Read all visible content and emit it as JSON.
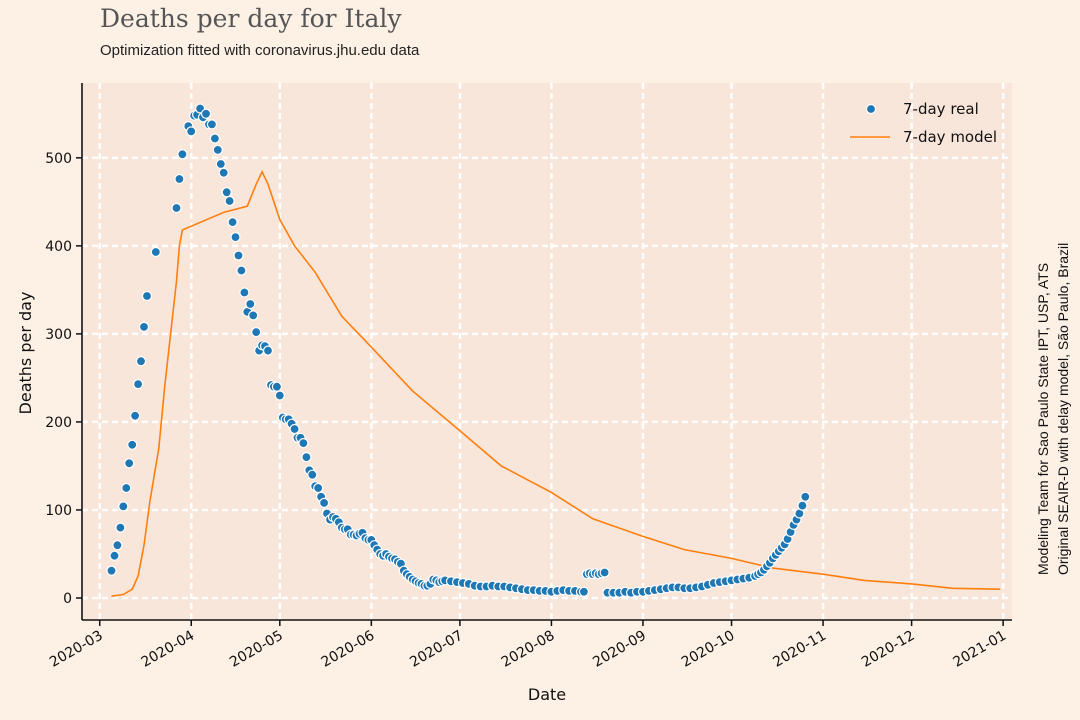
{
  "header": {
    "title": "Deaths per day for Italy",
    "subtitle": "Optimization fitted with coronavirus.jhu.edu data"
  },
  "side_note": {
    "line1": "Modeling Team for Sao Paulo State IPT, USP, ATS",
    "line2": "Original SEAIR-D with delay model, São Paulo, Brazil"
  },
  "colors": {
    "background": "#fdf1e6",
    "plot_background": "#f9e6da",
    "grid": "#ffffff",
    "real": "#1f77b4",
    "model": "#ff7f0e"
  },
  "chart_data": {
    "type": "line",
    "xlabel": "Date",
    "ylabel": "Deaths per day",
    "xlim": [
      "2020-02-24",
      "2021-01-04"
    ],
    "ylim": [
      -25,
      585
    ],
    "grid": true,
    "legend_position": "top-right",
    "x_ticks": [
      "2020-03",
      "2020-04",
      "2020-05",
      "2020-06",
      "2020-07",
      "2020-08",
      "2020-09",
      "2020-10",
      "2020-11",
      "2020-12",
      "2021-01"
    ],
    "y_ticks": [
      0,
      100,
      200,
      300,
      400,
      500
    ],
    "series": [
      {
        "name": "7-day real",
        "style": "scatter",
        "points": [
          [
            "2020-03-05",
            31
          ],
          [
            "2020-03-06",
            48
          ],
          [
            "2020-03-07",
            60
          ],
          [
            "2020-03-08",
            80
          ],
          [
            "2020-03-09",
            104
          ],
          [
            "2020-03-10",
            125
          ],
          [
            "2020-03-11",
            153
          ],
          [
            "2020-03-12",
            174
          ],
          [
            "2020-03-13",
            207
          ],
          [
            "2020-03-14",
            243
          ],
          [
            "2020-03-15",
            269
          ],
          [
            "2020-03-16",
            308
          ],
          [
            "2020-03-17",
            343
          ],
          [
            "2020-03-20",
            393
          ],
          [
            "2020-03-27",
            443
          ],
          [
            "2020-03-28",
            476
          ],
          [
            "2020-03-29",
            504
          ],
          [
            "2020-03-31",
            536
          ],
          [
            "2020-04-01",
            530
          ],
          [
            "2020-04-02",
            548
          ],
          [
            "2020-04-03",
            549
          ],
          [
            "2020-04-04",
            556
          ],
          [
            "2020-04-05",
            546
          ],
          [
            "2020-04-06",
            550
          ],
          [
            "2020-04-07",
            538
          ],
          [
            "2020-04-08",
            538
          ],
          [
            "2020-04-09",
            522
          ],
          [
            "2020-04-10",
            509
          ],
          [
            "2020-04-11",
            493
          ],
          [
            "2020-04-12",
            483
          ],
          [
            "2020-04-13",
            461
          ],
          [
            "2020-04-14",
            451
          ],
          [
            "2020-04-15",
            427
          ],
          [
            "2020-04-16",
            410
          ],
          [
            "2020-04-17",
            389
          ],
          [
            "2020-04-18",
            372
          ],
          [
            "2020-04-19",
            347
          ],
          [
            "2020-04-20",
            325
          ],
          [
            "2020-04-21",
            334
          ],
          [
            "2020-04-22",
            321
          ],
          [
            "2020-04-23",
            302
          ],
          [
            "2020-04-24",
            281
          ],
          [
            "2020-04-25",
            287
          ],
          [
            "2020-04-26",
            286
          ],
          [
            "2020-04-27",
            281
          ],
          [
            "2020-04-28",
            242
          ],
          [
            "2020-04-29",
            240
          ],
          [
            "2020-04-30",
            240
          ],
          [
            "2020-05-01",
            230
          ],
          [
            "2020-05-02",
            205
          ],
          [
            "2020-05-03",
            203
          ],
          [
            "2020-05-04",
            203
          ],
          [
            "2020-05-05",
            198
          ],
          [
            "2020-05-06",
            192
          ],
          [
            "2020-05-07",
            182
          ],
          [
            "2020-05-08",
            182
          ],
          [
            "2020-05-09",
            176
          ],
          [
            "2020-05-10",
            160
          ],
          [
            "2020-05-11",
            145
          ],
          [
            "2020-05-12",
            140
          ],
          [
            "2020-05-13",
            127
          ],
          [
            "2020-05-14",
            125
          ],
          [
            "2020-05-15",
            115
          ],
          [
            "2020-05-16",
            108
          ],
          [
            "2020-05-17",
            96
          ],
          [
            "2020-05-18",
            89
          ],
          [
            "2020-05-19",
            92
          ],
          [
            "2020-05-20",
            90
          ],
          [
            "2020-05-21",
            86
          ],
          [
            "2020-05-22",
            80
          ],
          [
            "2020-05-23",
            78
          ],
          [
            "2020-05-24",
            78
          ],
          [
            "2020-05-25",
            72
          ],
          [
            "2020-05-26",
            72
          ],
          [
            "2020-05-27",
            71
          ],
          [
            "2020-05-28",
            73
          ],
          [
            "2020-05-29",
            74
          ],
          [
            "2020-05-30",
            68
          ],
          [
            "2020-05-31",
            66
          ],
          [
            "2020-06-01",
            66
          ],
          [
            "2020-06-02",
            60
          ],
          [
            "2020-06-03",
            55
          ],
          [
            "2020-06-04",
            50
          ],
          [
            "2020-06-05",
            48
          ],
          [
            "2020-06-06",
            50
          ],
          [
            "2020-06-07",
            47
          ],
          [
            "2020-06-08",
            45
          ],
          [
            "2020-06-09",
            44
          ],
          [
            "2020-06-10",
            41
          ],
          [
            "2020-06-11",
            39
          ],
          [
            "2020-06-12",
            31
          ],
          [
            "2020-06-13",
            27
          ],
          [
            "2020-06-14",
            24
          ],
          [
            "2020-06-15",
            21
          ],
          [
            "2020-06-16",
            19
          ],
          [
            "2020-06-17",
            17
          ],
          [
            "2020-06-18",
            16
          ],
          [
            "2020-06-19",
            14
          ],
          [
            "2020-06-20",
            14
          ],
          [
            "2020-06-21",
            16
          ],
          [
            "2020-06-22",
            21
          ],
          [
            "2020-06-23",
            20
          ],
          [
            "2020-06-24",
            18
          ],
          [
            "2020-06-25",
            19
          ],
          [
            "2020-06-26",
            20
          ],
          [
            "2020-06-28",
            19
          ],
          [
            "2020-06-30",
            18
          ],
          [
            "2020-07-02",
            17
          ],
          [
            "2020-07-04",
            16
          ],
          [
            "2020-07-06",
            14
          ],
          [
            "2020-07-08",
            13
          ],
          [
            "2020-07-10",
            13
          ],
          [
            "2020-07-12",
            14
          ],
          [
            "2020-07-14",
            13
          ],
          [
            "2020-07-16",
            13
          ],
          [
            "2020-07-18",
            12
          ],
          [
            "2020-07-20",
            11
          ],
          [
            "2020-07-22",
            10
          ],
          [
            "2020-07-24",
            9
          ],
          [
            "2020-07-26",
            9
          ],
          [
            "2020-07-28",
            8
          ],
          [
            "2020-07-30",
            8
          ],
          [
            "2020-08-01",
            7
          ],
          [
            "2020-08-03",
            8
          ],
          [
            "2020-08-05",
            9
          ],
          [
            "2020-08-07",
            8
          ],
          [
            "2020-08-09",
            8
          ],
          [
            "2020-08-11",
            7
          ],
          [
            "2020-08-12",
            7
          ],
          [
            "2020-08-13",
            27
          ],
          [
            "2020-08-14",
            28
          ],
          [
            "2020-08-15",
            27
          ],
          [
            "2020-08-16",
            28
          ],
          [
            "2020-08-17",
            27
          ],
          [
            "2020-08-18",
            28
          ],
          [
            "2020-08-19",
            29
          ],
          [
            "2020-08-20",
            6
          ],
          [
            "2020-08-22",
            6
          ],
          [
            "2020-08-24",
            6
          ],
          [
            "2020-08-26",
            7
          ],
          [
            "2020-08-28",
            6
          ],
          [
            "2020-08-30",
            7
          ],
          [
            "2020-09-01",
            7
          ],
          [
            "2020-09-03",
            8
          ],
          [
            "2020-09-05",
            9
          ],
          [
            "2020-09-07",
            10
          ],
          [
            "2020-09-09",
            11
          ],
          [
            "2020-09-11",
            12
          ],
          [
            "2020-09-13",
            12
          ],
          [
            "2020-09-15",
            11
          ],
          [
            "2020-09-17",
            11
          ],
          [
            "2020-09-19",
            12
          ],
          [
            "2020-09-21",
            13
          ],
          [
            "2020-09-23",
            15
          ],
          [
            "2020-09-25",
            17
          ],
          [
            "2020-09-27",
            18
          ],
          [
            "2020-09-29",
            19
          ],
          [
            "2020-10-01",
            20
          ],
          [
            "2020-10-03",
            21
          ],
          [
            "2020-10-05",
            22
          ],
          [
            "2020-10-07",
            23
          ],
          [
            "2020-10-09",
            25
          ],
          [
            "2020-10-10",
            27
          ],
          [
            "2020-10-11",
            29
          ],
          [
            "2020-10-12",
            32
          ],
          [
            "2020-10-13",
            36
          ],
          [
            "2020-10-14",
            40
          ],
          [
            "2020-10-15",
            45
          ],
          [
            "2020-10-16",
            49
          ],
          [
            "2020-10-17",
            53
          ],
          [
            "2020-10-18",
            57
          ],
          [
            "2020-10-19",
            61
          ],
          [
            "2020-10-20",
            67
          ],
          [
            "2020-10-21",
            75
          ],
          [
            "2020-10-22",
            83
          ],
          [
            "2020-10-23",
            89
          ],
          [
            "2020-10-24",
            96
          ],
          [
            "2020-10-25",
            105
          ],
          [
            "2020-10-26",
            115
          ]
        ]
      },
      {
        "name": "7-day model",
        "style": "line",
        "points": [
          [
            "2020-03-05",
            2
          ],
          [
            "2020-03-09",
            4
          ],
          [
            "2020-03-12",
            10
          ],
          [
            "2020-03-14",
            25
          ],
          [
            "2020-03-16",
            60
          ],
          [
            "2020-03-18",
            110
          ],
          [
            "2020-03-21",
            170
          ],
          [
            "2020-03-23",
            240
          ],
          [
            "2020-03-25",
            300
          ],
          [
            "2020-03-27",
            360
          ],
          [
            "2020-03-28",
            400
          ],
          [
            "2020-03-29",
            418
          ],
          [
            "2020-04-05",
            428
          ],
          [
            "2020-04-12",
            438
          ],
          [
            "2020-04-20",
            445
          ],
          [
            "2020-04-23",
            470
          ],
          [
            "2020-04-25",
            484
          ],
          [
            "2020-04-27",
            470
          ],
          [
            "2020-05-01",
            430
          ],
          [
            "2020-05-06",
            400
          ],
          [
            "2020-05-13",
            370
          ],
          [
            "2020-05-22",
            320
          ],
          [
            "2020-06-01",
            285
          ],
          [
            "2020-06-15",
            235
          ],
          [
            "2020-07-01",
            190
          ],
          [
            "2020-07-15",
            150
          ],
          [
            "2020-08-01",
            120
          ],
          [
            "2020-08-15",
            90
          ],
          [
            "2020-09-01",
            70
          ],
          [
            "2020-09-15",
            55
          ],
          [
            "2020-10-01",
            45
          ],
          [
            "2020-10-15",
            34
          ],
          [
            "2020-11-01",
            27
          ],
          [
            "2020-11-15",
            20
          ],
          [
            "2020-12-01",
            16
          ],
          [
            "2020-12-15",
            11
          ],
          [
            "2020-12-31",
            10
          ]
        ]
      }
    ]
  }
}
